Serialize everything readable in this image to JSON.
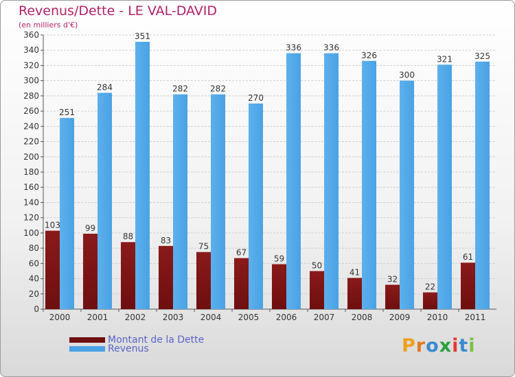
{
  "title": "Revenus/Dette - LE VAL-DAVID",
  "subtitle": "(en milliers d'€)",
  "logo": {
    "text": "Proxiti",
    "letters": [
      "P",
      "r",
      "o",
      "x",
      "i",
      "t",
      "i"
    ]
  },
  "colors": {
    "title": "#b0206a",
    "debt": "#6e0f10",
    "revenue": "#4aa2e4",
    "legend_text": "#5a64c8",
    "axis_text": "#333333"
  },
  "chart_data": {
    "type": "bar",
    "title": "Revenus/Dette - LE VAL-DAVID",
    "ylabel": "(en milliers d'€)",
    "xlabel": "",
    "ylim": [
      0,
      360
    ],
    "ytick_step": 20,
    "grid": true,
    "legend": "bottom-left",
    "categories": [
      "2000",
      "2001",
      "2002",
      "2003",
      "2004",
      "2005",
      "2006",
      "2007",
      "2008",
      "2009",
      "2010",
      "2011"
    ],
    "series": [
      {
        "name": "Montant de la Dette",
        "color": "#6e0f10",
        "values": [
          103,
          99,
          88,
          83,
          75,
          67,
          59,
          50,
          41,
          32,
          22,
          61
        ]
      },
      {
        "name": "Revenus",
        "color": "#4aa2e4",
        "values": [
          251,
          284,
          351,
          282,
          282,
          270,
          336,
          336,
          326,
          300,
          321,
          325
        ]
      }
    ]
  }
}
